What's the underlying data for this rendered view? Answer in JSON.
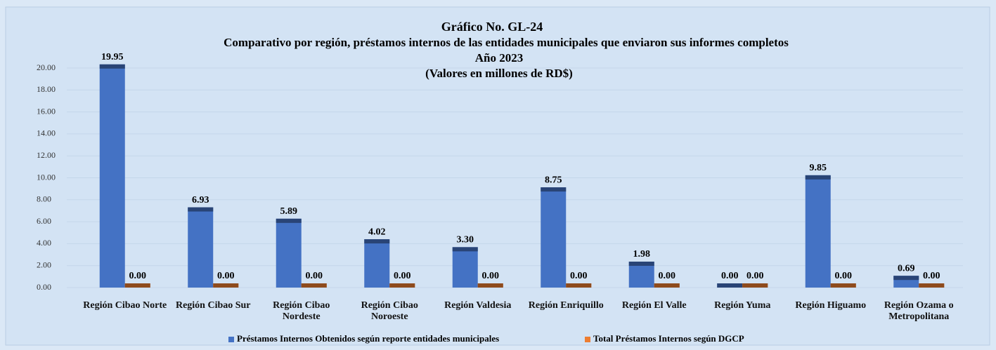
{
  "chart_data": {
    "type": "bar",
    "title": "Gráfico No. GL-24",
    "subtitles": [
      "Comparativo  por región, préstamos internos de las entidades municipales que enviaron sus informes completos",
      "Año 2023",
      "(Valores en millones de RD$)"
    ],
    "categories": [
      "Región Cibao Norte",
      "Región Cibao Sur",
      "Región Cibao Nordeste",
      "Región Cibao Noroeste",
      "Región Valdesia",
      "Región Enriquillo",
      "Región El Valle",
      "Región Yuma",
      "Región Higuamo",
      "Región Ozama o Metropolitana"
    ],
    "series": [
      {
        "name": "Préstamos Internos Obtenidos según reporte entidades municipales",
        "color": "#4472c4",
        "values": [
          19.95,
          6.93,
          5.89,
          4.02,
          3.3,
          8.75,
          1.98,
          0,
          9.85,
          0.69
        ],
        "value_labels": [
          "19.95",
          "6.93",
          "5.89",
          "4.02",
          "3.30",
          "8.75",
          "1.98",
          "0.00",
          "9.85",
          "0.69"
        ]
      },
      {
        "name": "Total Préstamos Internos según DGCP",
        "color": "#ed7d31",
        "values": [
          0,
          0,
          0,
          0,
          0,
          0,
          0,
          0,
          0,
          0
        ],
        "value_labels": [
          "0.00",
          "0.00",
          "0.00",
          "0.00",
          "0.00",
          "0.00",
          "0.00",
          "0.00",
          "0.00",
          "0.00"
        ]
      }
    ],
    "ylim": [
      0,
      20
    ],
    "yticks": [
      {
        "value": 0,
        "label": "0.00"
      },
      {
        "value": 2,
        "label": "2.00"
      },
      {
        "value": 4,
        "label": "4.00"
      },
      {
        "value": 6,
        "label": "6.00"
      },
      {
        "value": 8,
        "label": "8.00"
      },
      {
        "value": 10,
        "label": "10.00"
      },
      {
        "value": 12,
        "label": "12.00"
      },
      {
        "value": 14,
        "label": "14.00"
      },
      {
        "value": 16,
        "label": "16.00"
      },
      {
        "value": 18,
        "label": "18.00"
      },
      {
        "value": 20,
        "label": "20.00"
      }
    ],
    "grid": true,
    "legend": "bottom"
  }
}
